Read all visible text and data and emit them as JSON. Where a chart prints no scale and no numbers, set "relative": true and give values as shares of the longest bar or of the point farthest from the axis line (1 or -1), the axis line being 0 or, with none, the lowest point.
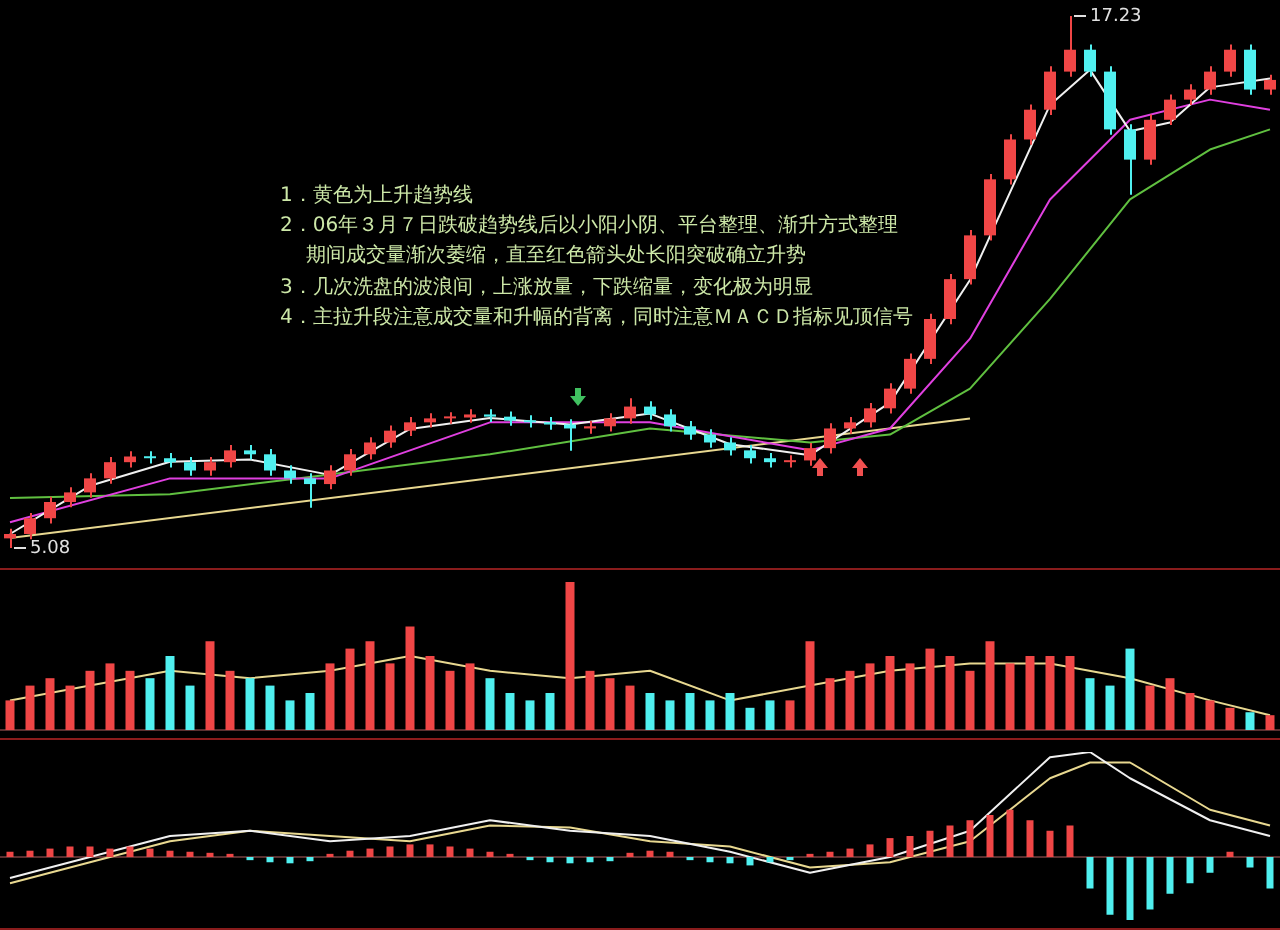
{
  "chart_data": [
    {
      "type": "candlestick",
      "marker": "none",
      "legend": false,
      "categories": [
        null,
        null,
        null,
        null,
        null,
        null,
        null,
        null,
        null,
        null,
        null,
        null,
        null,
        null,
        null,
        null,
        null,
        null,
        null,
        null,
        null,
        null,
        null,
        null,
        null,
        null,
        null,
        null,
        null,
        null,
        null,
        null,
        null,
        null,
        null,
        null,
        null,
        null,
        null,
        null,
        null,
        null,
        null,
        null,
        null,
        null,
        null,
        null,
        null,
        null,
        null,
        null,
        null,
        null,
        null,
        null,
        null,
        null,
        null,
        null,
        null,
        null,
        null,
        null
      ],
      "ohlc": [
        [
          5.3,
          5.52,
          5.08,
          5.4
        ],
        [
          5.4,
          5.88,
          5.28,
          5.76
        ],
        [
          5.76,
          6.25,
          5.64,
          6.13
        ],
        [
          6.13,
          6.47,
          6.01,
          6.35
        ],
        [
          6.35,
          6.79,
          6.23,
          6.67
        ],
        [
          6.67,
          7.16,
          6.55,
          7.04
        ],
        [
          7.04,
          7.29,
          6.92,
          7.17
        ],
        [
          7.17,
          7.29,
          7.01,
          7.13
        ],
        [
          7.13,
          7.25,
          6.92,
          7.04
        ],
        [
          7.04,
          7.16,
          6.73,
          6.85
        ],
        [
          6.85,
          7.16,
          6.73,
          7.04
        ],
        [
          7.04,
          7.43,
          6.92,
          7.31
        ],
        [
          7.31,
          7.43,
          7.1,
          7.22
        ],
        [
          7.22,
          7.34,
          6.73,
          6.85
        ],
        [
          6.85,
          6.97,
          6.55,
          6.67
        ],
        [
          6.67,
          6.79,
          6.0,
          6.54
        ],
        [
          6.54,
          6.97,
          6.42,
          6.85
        ],
        [
          6.85,
          7.34,
          6.73,
          7.22
        ],
        [
          7.22,
          7.61,
          7.1,
          7.49
        ],
        [
          7.49,
          7.88,
          7.37,
          7.76
        ],
        [
          7.76,
          8.07,
          7.64,
          7.95
        ],
        [
          7.95,
          8.16,
          7.83,
          8.04
        ],
        [
          8.04,
          8.18,
          7.92,
          8.06
        ],
        [
          8.06,
          8.25,
          7.94,
          8.13
        ],
        [
          8.13,
          8.25,
          7.96,
          8.08
        ],
        [
          8.08,
          8.2,
          7.87,
          7.99
        ],
        [
          7.99,
          8.11,
          7.83,
          7.95
        ],
        [
          7.95,
          8.07,
          7.78,
          7.9
        ],
        [
          7.9,
          8.02,
          7.3,
          7.81
        ],
        [
          7.81,
          7.98,
          7.69,
          7.86
        ],
        [
          7.86,
          8.16,
          7.74,
          8.04
        ],
        [
          8.04,
          8.5,
          7.92,
          8.31
        ],
        [
          8.31,
          8.43,
          8.01,
          8.13
        ],
        [
          8.13,
          8.25,
          7.74,
          7.86
        ],
        [
          7.86,
          7.98,
          7.55,
          7.67
        ],
        [
          7.67,
          7.79,
          7.37,
          7.49
        ],
        [
          7.49,
          7.61,
          7.19,
          7.31
        ],
        [
          7.31,
          7.43,
          7.01,
          7.13
        ],
        [
          7.13,
          7.25,
          6.92,
          7.04
        ],
        [
          7.04,
          7.2,
          6.92,
          7.08
        ],
        [
          7.08,
          7.48,
          6.96,
          7.36
        ],
        [
          7.36,
          7.93,
          7.24,
          7.81
        ],
        [
          7.81,
          8.07,
          7.69,
          7.95
        ],
        [
          7.95,
          8.39,
          7.83,
          8.27
        ],
        [
          8.27,
          8.84,
          8.15,
          8.72
        ],
        [
          8.72,
          9.52,
          8.6,
          9.4
        ],
        [
          9.4,
          10.43,
          9.28,
          10.31
        ],
        [
          10.31,
          11.34,
          10.19,
          11.22
        ],
        [
          11.22,
          12.34,
          11.1,
          12.22
        ],
        [
          12.22,
          13.62,
          12.1,
          13.5
        ],
        [
          13.5,
          14.53,
          13.38,
          14.41
        ],
        [
          14.41,
          15.21,
          14.29,
          15.09
        ],
        [
          15.09,
          16.08,
          14.97,
          15.96
        ],
        [
          15.96,
          17.23,
          15.84,
          16.46
        ],
        [
          16.46,
          16.58,
          15.84,
          15.96
        ],
        [
          15.96,
          16.08,
          14.52,
          14.64
        ],
        [
          14.64,
          14.76,
          13.15,
          13.95
        ],
        [
          13.95,
          14.98,
          13.83,
          14.86
        ],
        [
          14.86,
          15.44,
          14.74,
          15.32
        ],
        [
          15.32,
          15.67,
          15.2,
          15.55
        ],
        [
          15.55,
          16.08,
          15.43,
          15.96
        ],
        [
          15.96,
          16.58,
          15.84,
          16.46
        ],
        [
          16.46,
          16.58,
          15.43,
          15.55
        ],
        [
          15.55,
          15.89,
          15.43,
          15.77
        ]
      ],
      "colors": [
        "#f04646",
        "#f04646",
        "#f04646",
        "#f04646",
        "#f04646",
        "#f04646",
        "#f04646",
        "#50f0f0",
        "#50f0f0",
        "#50f0f0",
        "#f04646",
        "#f04646",
        "#50f0f0",
        "#50f0f0",
        "#50f0f0",
        "#50f0f0",
        "#f04646",
        "#f04646",
        "#f04646",
        "#f04646",
        "#f04646",
        "#f04646",
        "#f04646",
        "#f04646",
        "#50f0f0",
        "#50f0f0",
        "#50f0f0",
        "#50f0f0",
        "#50f0f0",
        "#f04646",
        "#f04646",
        "#f04646",
        "#50f0f0",
        "#50f0f0",
        "#50f0f0",
        "#50f0f0",
        "#50f0f0",
        "#50f0f0",
        "#50f0f0",
        "#f04646",
        "#f04646",
        "#f04646",
        "#f04646",
        "#f04646",
        "#f04646",
        "#f04646",
        "#f04646",
        "#f04646",
        "#f04646",
        "#f04646",
        "#f04646",
        "#f04646",
        "#f04646",
        "#f04646",
        "#50f0f0",
        "#50f0f0",
        "#50f0f0",
        "#f04646",
        "#f04646",
        "#f04646",
        "#f04646",
        "#f04646",
        "#50f0f0",
        "#f04646"
      ],
      "series": [
        {
          "type": "line",
          "color": "#f0f0f0",
          "values": [
            5.4,
            null,
            null,
            null,
            6.5,
            null,
            null,
            null,
            7.05,
            null,
            null,
            null,
            7.1,
            null,
            null,
            null,
            6.75,
            null,
            null,
            null,
            7.8,
            null,
            null,
            null,
            8.05,
            null,
            null,
            null,
            7.9,
            null,
            null,
            null,
            8.15,
            null,
            null,
            null,
            7.45,
            null,
            null,
            null,
            7.2,
            null,
            null,
            null,
            8.4,
            null,
            null,
            null,
            11.2,
            null,
            null,
            null,
            15.2,
            null,
            16.0,
            null,
            14.6,
            null,
            14.8,
            null,
            15.6,
            null,
            null,
            15.8
          ]
        },
        {
          "type": "line",
          "color": "#e040e0",
          "values": [
            5.67,
            null,
            null,
            null,
            null,
            null,
            null,
            null,
            6.67,
            null,
            null,
            null,
            null,
            null,
            null,
            null,
            6.67,
            null,
            null,
            null,
            null,
            null,
            null,
            null,
            7.95,
            null,
            null,
            null,
            null,
            null,
            null,
            null,
            7.95,
            null,
            null,
            null,
            null,
            null,
            null,
            null,
            7.31,
            null,
            null,
            null,
            7.81,
            null,
            null,
            null,
            9.86,
            null,
            null,
            null,
            13.04,
            null,
            null,
            null,
            14.86,
            null,
            null,
            null,
            15.32,
            null,
            null,
            15.09
          ]
        },
        {
          "type": "line",
          "color": "#60c040",
          "values": [
            6.22,
            null,
            null,
            null,
            null,
            null,
            null,
            null,
            6.31,
            null,
            null,
            null,
            null,
            null,
            null,
            null,
            6.76,
            null,
            null,
            null,
            null,
            null,
            null,
            null,
            7.22,
            null,
            null,
            null,
            null,
            null,
            null,
            null,
            7.81,
            null,
            null,
            null,
            null,
            null,
            null,
            null,
            7.49,
            null,
            null,
            null,
            7.67,
            null,
            null,
            null,
            8.72,
            null,
            null,
            null,
            10.77,
            null,
            null,
            null,
            13.04,
            null,
            null,
            null,
            14.18,
            null,
            null,
            14.64
          ]
        },
        {
          "type": "line",
          "color": "#e8d890",
          "values": [
            5.31,
            null,
            null,
            null,
            null,
            null,
            null,
            null,
            null,
            null,
            null,
            null,
            null,
            null,
            null,
            null,
            null,
            null,
            null,
            null,
            null,
            null,
            null,
            null,
            null,
            null,
            null,
            null,
            null,
            null,
            null,
            null,
            null,
            null,
            null,
            null,
            null,
            null,
            null,
            null,
            null,
            null,
            null,
            null,
            null,
            null,
            null,
            null,
            8.04,
            null,
            null,
            null,
            null,
            null,
            null,
            null,
            null,
            null,
            null,
            null,
            null,
            null,
            null,
            null
          ]
        }
      ],
      "annotations": [
        "1．黄色为上升趋势线",
        "2．06年３月７日跌破趋势线后以小阳小阴、平台整理、渐升方式整理",
        "期间成交量渐次萎缩，直至红色箭头处长阳突破确立升势",
        "3．几次洗盘的波浪间，上涨放量，下跌缩量，变化极为明显",
        "4．主拉升段注意成交量和升幅的背离，同时注意ＭＡＣＤ指标见顶信号",
        "17.23",
        "5.08"
      ]
    },
    {
      "type": "bar",
      "relative": true,
      "marker": "none",
      "legend": false,
      "categories": [
        null,
        null,
        null,
        null,
        null,
        null,
        null,
        null,
        null,
        null,
        null,
        null,
        null,
        null,
        null,
        null,
        null,
        null,
        null,
        null,
        null,
        null,
        null,
        null,
        null,
        null,
        null,
        null,
        null,
        null,
        null,
        null,
        null,
        null,
        null,
        null,
        null,
        null,
        null,
        null,
        null,
        null,
        null,
        null,
        null,
        null,
        null,
        null,
        null,
        null,
        null,
        null,
        null,
        null,
        null,
        null,
        null,
        null,
        null,
        null,
        null,
        null,
        null,
        null
      ],
      "values": [
        0.2,
        0.3,
        0.35,
        0.3,
        0.4,
        0.45,
        0.4,
        0.35,
        0.5,
        0.3,
        0.6,
        0.4,
        0.35,
        0.3,
        0.2,
        0.25,
        0.45,
        0.55,
        0.6,
        0.45,
        0.7,
        0.5,
        0.4,
        0.45,
        0.35,
        0.25,
        0.2,
        0.25,
        1,
        0.4,
        0.35,
        0.3,
        0.25,
        0.2,
        0.25,
        0.2,
        0.25,
        0.15,
        0.2,
        0.2,
        0.6,
        0.35,
        0.4,
        0.45,
        0.5,
        0.45,
        0.55,
        0.5,
        0.4,
        0.6,
        0.45,
        0.5,
        0.5,
        0.5,
        0.35,
        0.3,
        0.55,
        0.3,
        0.35,
        0.25,
        0.2,
        0.15,
        0.12,
        0.1
      ],
      "colors": [
        "#f04646",
        "#f04646",
        "#f04646",
        "#f04646",
        "#f04646",
        "#f04646",
        "#f04646",
        "#50f0f0",
        "#50f0f0",
        "#50f0f0",
        "#f04646",
        "#f04646",
        "#50f0f0",
        "#50f0f0",
        "#50f0f0",
        "#50f0f0",
        "#f04646",
        "#f04646",
        "#f04646",
        "#f04646",
        "#f04646",
        "#f04646",
        "#f04646",
        "#f04646",
        "#50f0f0",
        "#50f0f0",
        "#50f0f0",
        "#50f0f0",
        "#f04646",
        "#f04646",
        "#f04646",
        "#f04646",
        "#50f0f0",
        "#50f0f0",
        "#50f0f0",
        "#50f0f0",
        "#50f0f0",
        "#50f0f0",
        "#50f0f0",
        "#f04646",
        "#f04646",
        "#f04646",
        "#f04646",
        "#f04646",
        "#f04646",
        "#f04646",
        "#f04646",
        "#f04646",
        "#f04646",
        "#f04646",
        "#f04646",
        "#f04646",
        "#f04646",
        "#f04646",
        "#50f0f0",
        "#50f0f0",
        "#50f0f0",
        "#f04646",
        "#f04646",
        "#f04646",
        "#f04646",
        "#f04646",
        "#50f0f0",
        "#f04646"
      ],
      "series": [
        {
          "type": "line",
          "color": "#e8d890",
          "values": [
            0.2,
            null,
            null,
            null,
            0.3,
            null,
            null,
            null,
            0.4,
            null,
            null,
            null,
            0.35,
            null,
            null,
            null,
            0.4,
            null,
            null,
            null,
            0.5,
            null,
            null,
            null,
            0.4,
            null,
            null,
            null,
            0.35,
            null,
            null,
            null,
            0.4,
            null,
            null,
            null,
            0.2,
            null,
            null,
            null,
            0.3,
            null,
            null,
            null,
            0.4,
            null,
            null,
            null,
            0.45,
            null,
            null,
            null,
            0.45,
            null,
            null,
            null,
            0.35,
            null,
            null,
            null,
            0.2,
            null,
            null,
            0.1
          ]
        }
      ]
    },
    {
      "type": "line",
      "relative": true,
      "marker": "none",
      "legend": false,
      "categories": [
        null,
        null,
        null,
        null,
        null,
        null,
        null,
        null,
        null,
        null,
        null,
        null,
        null,
        null,
        null,
        null,
        null,
        null,
        null,
        null,
        null,
        null,
        null,
        null,
        null,
        null,
        null,
        null,
        null,
        null,
        null,
        null,
        null,
        null,
        null,
        null,
        null,
        null,
        null,
        null,
        null,
        null,
        null,
        null,
        null,
        null,
        null,
        null,
        null,
        null,
        null,
        null,
        null,
        null,
        null,
        null,
        null,
        null,
        null,
        null,
        null,
        null,
        null,
        null
      ],
      "series": [
        {
          "type": "bar",
          "values": [
            0.05,
            0.06,
            0.08,
            0.1,
            0.1,
            0.08,
            0.1,
            0.08,
            0.06,
            0.05,
            0.04,
            0.03,
            -0.03,
            -0.05,
            -0.06,
            -0.04,
            0.03,
            0.06,
            0.08,
            0.1,
            0.12,
            0.12,
            0.1,
            0.08,
            0.05,
            0.03,
            -0.03,
            -0.05,
            -0.06,
            -0.05,
            -0.04,
            0.04,
            0.06,
            0.05,
            -0.03,
            -0.05,
            -0.06,
            -0.08,
            -0.05,
            -0.03,
            0.03,
            0.05,
            0.08,
            0.12,
            0.18,
            0.2,
            0.25,
            0.3,
            0.35,
            0.4,
            0.45,
            0.35,
            0.25,
            0.3,
            -0.3,
            -0.55,
            -0.6,
            -0.5,
            -0.35,
            -0.25,
            -0.15,
            0.05,
            -0.1,
            -0.3
          ],
          "colors": [
            "#f04646",
            "#f04646",
            "#f04646",
            "#f04646",
            "#f04646",
            "#f04646",
            "#f04646",
            "#f04646",
            "#f04646",
            "#f04646",
            "#f04646",
            "#f04646",
            "#50f0f0",
            "#50f0f0",
            "#50f0f0",
            "#50f0f0",
            "#f04646",
            "#f04646",
            "#f04646",
            "#f04646",
            "#f04646",
            "#f04646",
            "#f04646",
            "#f04646",
            "#f04646",
            "#f04646",
            "#50f0f0",
            "#50f0f0",
            "#50f0f0",
            "#50f0f0",
            "#50f0f0",
            "#f04646",
            "#f04646",
            "#f04646",
            "#50f0f0",
            "#50f0f0",
            "#50f0f0",
            "#50f0f0",
            "#50f0f0",
            "#50f0f0",
            "#f04646",
            "#f04646",
            "#f04646",
            "#f04646",
            "#f04646",
            "#f04646",
            "#f04646",
            "#f04646",
            "#f04646",
            "#f04646",
            "#f04646",
            "#f04646",
            "#f04646",
            "#f04646",
            "#50f0f0",
            "#50f0f0",
            "#50f0f0",
            "#50f0f0",
            "#50f0f0",
            "#50f0f0",
            "#50f0f0",
            "#f04646",
            "#50f0f0",
            "#50f0f0"
          ]
        },
        {
          "type": "line",
          "color": "#f0f0f0",
          "values": [
            -0.2,
            null,
            null,
            null,
            0,
            null,
            null,
            null,
            0.2,
            null,
            null,
            null,
            0.25,
            null,
            null,
            null,
            0.15,
            null,
            null,
            null,
            0.2,
            null,
            null,
            null,
            0.35,
            null,
            null,
            null,
            0.25,
            null,
            null,
            null,
            0.2,
            null,
            null,
            null,
            0.05,
            null,
            null,
            null,
            -0.15,
            null,
            null,
            null,
            0,
            null,
            null,
            null,
            0.25,
            null,
            null,
            null,
            0.95,
            null,
            1,
            null,
            0.75,
            null,
            null,
            null,
            0.35,
            null,
            null,
            0.2
          ]
        },
        {
          "type": "line",
          "color": "#e8d890",
          "values": [
            -0.25,
            null,
            null,
            null,
            -0.05,
            null,
            null,
            null,
            0.15,
            null,
            null,
            null,
            0.25,
            null,
            null,
            null,
            0.2,
            null,
            null,
            null,
            0.15,
            null,
            null,
            null,
            0.3,
            null,
            null,
            null,
            0.28,
            null,
            null,
            null,
            0.15,
            null,
            null,
            null,
            0.1,
            null,
            null,
            null,
            -0.1,
            null,
            null,
            null,
            -0.05,
            null,
            null,
            null,
            0.15,
            null,
            null,
            null,
            0.75,
            null,
            0.9,
            null,
            0.9,
            null,
            null,
            null,
            0.45,
            null,
            null,
            0.3
          ]
        }
      ]
    }
  ]
}
